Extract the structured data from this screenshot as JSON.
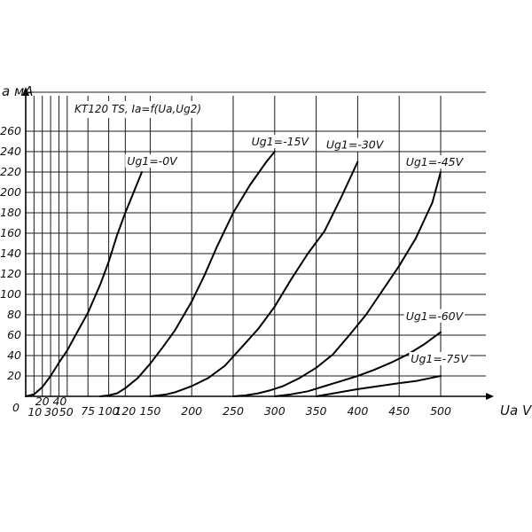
{
  "chart_data": {
    "type": "line",
    "title": "KT120 TS, Ia=f(Ua,Ug2)",
    "xlabel": "Ua V",
    "ylabel": "a мА",
    "xlim": [
      0,
      500
    ],
    "ylim": [
      0,
      270
    ],
    "grid": true,
    "x_tick_labels": [
      {
        "v": 10,
        "t": "10"
      },
      {
        "v": 20,
        "t": "20"
      },
      {
        "v": 30,
        "t": "30"
      },
      {
        "v": 40,
        "t": "40"
      },
      {
        "v": 50,
        "t": "50"
      },
      {
        "v": 75,
        "t": "75"
      },
      {
        "v": 100,
        "t": "100"
      },
      {
        "v": 120,
        "t": "120"
      },
      {
        "v": 150,
        "t": "150"
      },
      {
        "v": 200,
        "t": "200"
      },
      {
        "v": 250,
        "t": "250"
      },
      {
        "v": 300,
        "t": "300"
      },
      {
        "v": 350,
        "t": "350"
      },
      {
        "v": 400,
        "t": "400"
      },
      {
        "v": 450,
        "t": "450"
      },
      {
        "v": 500,
        "t": "500"
      }
    ],
    "origin_label": "0",
    "x_grid": [
      10,
      20,
      30,
      40,
      50,
      75,
      100,
      120,
      150,
      200,
      250,
      300,
      350,
      400,
      450,
      500
    ],
    "y_ticks": [
      20,
      40,
      60,
      80,
      100,
      120,
      140,
      160,
      180,
      200,
      220,
      240,
      260
    ],
    "series": [
      {
        "name": "Ug1=-0V",
        "x": [
          0,
          10,
          20,
          30,
          40,
          50,
          60,
          75,
          90,
          100,
          110,
          120,
          130,
          140
        ],
        "y": [
          0,
          2,
          9,
          20,
          33,
          45,
          60,
          82,
          110,
          132,
          158,
          180,
          200,
          220
        ]
      },
      {
        "name": "Ug1=-15V",
        "x": [
          90,
          100,
          110,
          120,
          135,
          150,
          165,
          180,
          200,
          215,
          230,
          250,
          270,
          290,
          300
        ],
        "y": [
          0,
          1,
          3,
          8,
          18,
          32,
          48,
          65,
          93,
          118,
          146,
          180,
          207,
          230,
          240
        ]
      },
      {
        "name": "Ug1=-30V",
        "x": [
          150,
          160,
          170,
          180,
          200,
          220,
          240,
          260,
          280,
          300,
          320,
          340,
          360,
          380,
          400
        ],
        "y": [
          0,
          1,
          2,
          4,
          10,
          18,
          30,
          48,
          66,
          88,
          115,
          140,
          162,
          195,
          230
        ]
      },
      {
        "name": "Ug1=-45V",
        "x": [
          250,
          265,
          280,
          295,
          310,
          330,
          350,
          370,
          390,
          410,
          430,
          450,
          470,
          490,
          500
        ],
        "y": [
          0,
          1,
          3,
          6,
          10,
          18,
          28,
          41,
          60,
          80,
          104,
          128,
          155,
          190,
          220
        ]
      },
      {
        "name": "Ug1=-60V",
        "x": [
          300,
          320,
          340,
          360,
          380,
          400,
          420,
          440,
          460,
          480,
          500
        ],
        "y": [
          0,
          2,
          5,
          10,
          15,
          20,
          26,
          33,
          41,
          51,
          63
        ]
      },
      {
        "name": "Ug1=-75V",
        "x": [
          350,
          400,
          450,
          470,
          500
        ],
        "y": [
          0,
          7,
          13,
          15,
          20
        ]
      }
    ],
    "curve_labels": [
      {
        "series": "Ug1=-0V",
        "x": 122,
        "y": 227
      },
      {
        "series": "Ug1=-15V",
        "x": 272,
        "y": 246
      },
      {
        "series": "Ug1=-30V",
        "x": 362,
        "y": 243
      },
      {
        "series": "Ug1=-45V",
        "x": 458,
        "y": 226
      },
      {
        "series": "Ug1=-60V",
        "x": 458,
        "y": 75
      },
      {
        "series": "Ug1=-75V",
        "x": 464,
        "y": 33
      }
    ]
  }
}
